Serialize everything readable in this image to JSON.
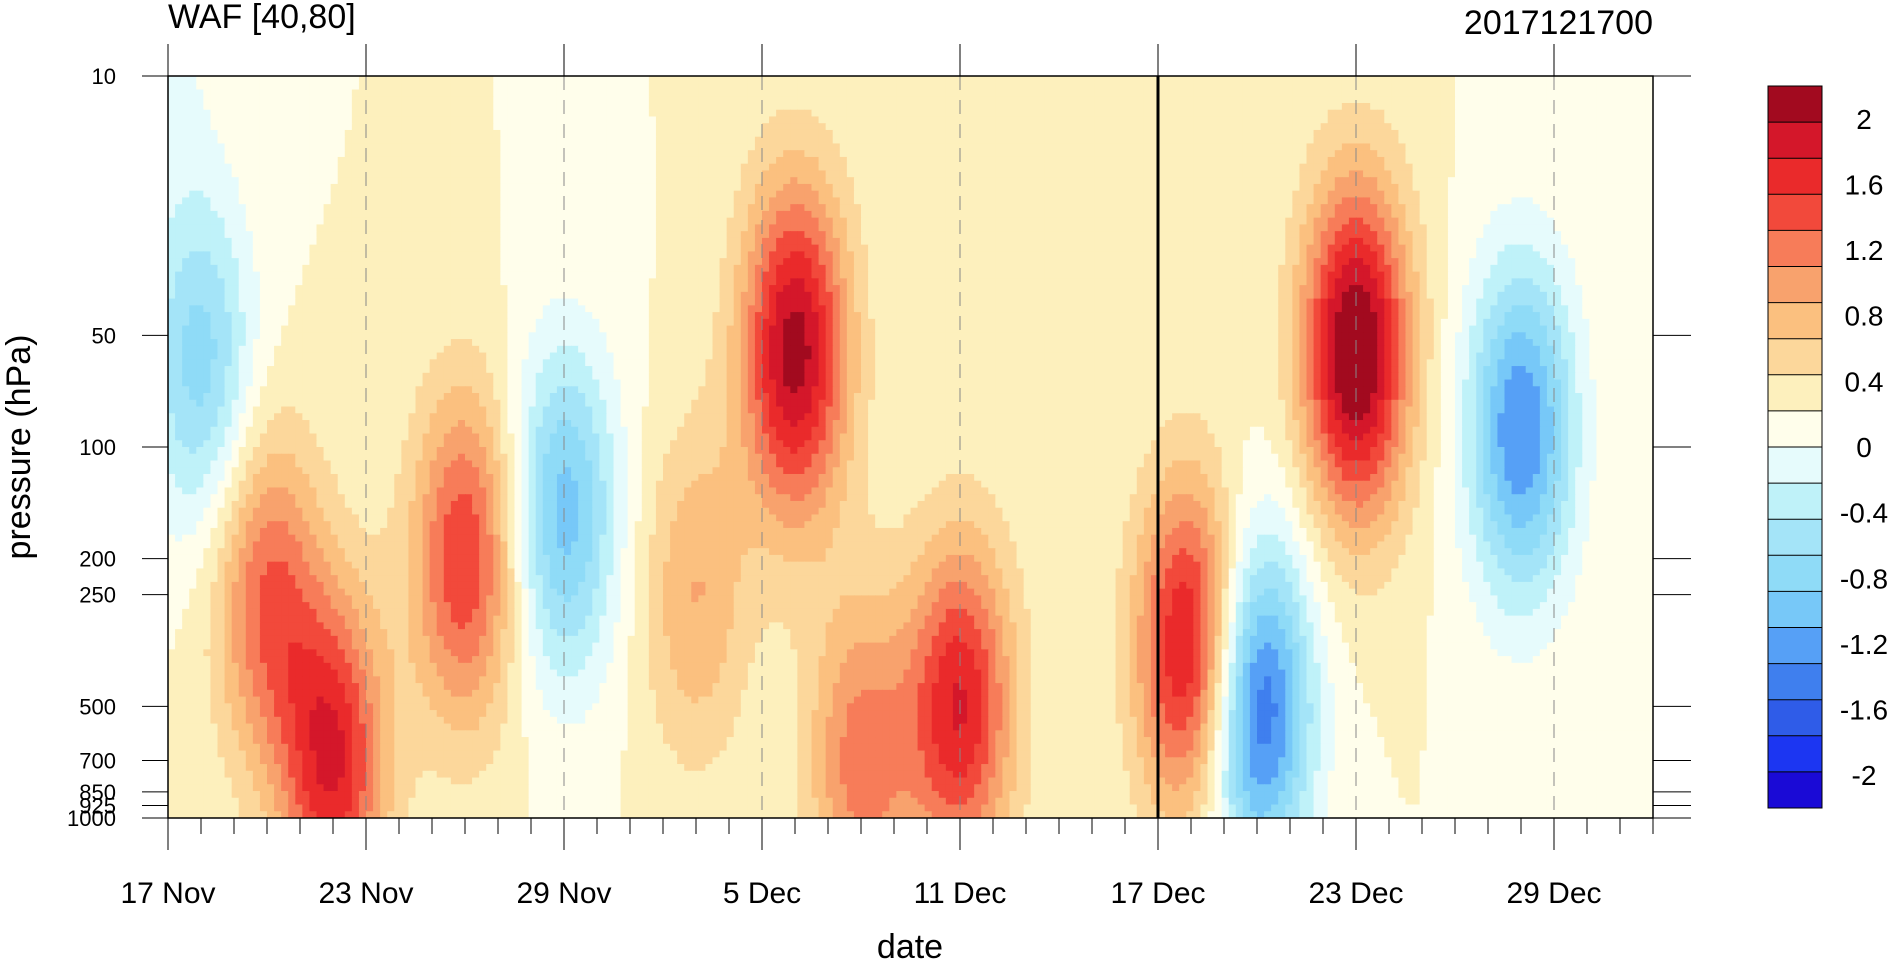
{
  "chart_data": {
    "type": "heatmap",
    "title": "WAF [40,80]",
    "subtitle": "2017121700",
    "xlabel": "date",
    "ylabel": "pressure (hPa)",
    "x_start": "2017-11-17",
    "x_end": "2018-01-01",
    "x_tick_labels": [
      "17 Nov",
      "23 Nov",
      "29 Nov",
      "5 Dec",
      "11 Dec",
      "17 Dec",
      "23 Dec",
      "29 Dec"
    ],
    "x_ticks": [
      "2017-11-17",
      "2017-11-23",
      "2017-11-29",
      "2017-12-05",
      "2017-12-11",
      "2017-12-17",
      "2017-12-23",
      "2017-12-29"
    ],
    "y_scale": "log",
    "y_ticks": [
      10,
      50,
      100,
      200,
      250,
      500,
      700,
      850,
      925,
      1000
    ],
    "y_tick_labels": [
      "10",
      "50",
      "100",
      "200",
      "250",
      "500",
      "700",
      "850",
      "925",
      "1000"
    ],
    "ylim": [
      1000,
      10
    ],
    "marker_date": "2017-12-17",
    "colorbar": {
      "levels": [
        -2.2,
        -2.0,
        -1.8,
        -1.6,
        -1.4,
        -1.2,
        -1.0,
        -0.8,
        -0.6,
        -0.4,
        -0.2,
        0.0,
        0.2,
        0.4,
        0.6,
        0.8,
        1.0,
        1.2,
        1.4,
        1.6,
        1.8,
        2.0,
        2.2
      ],
      "tick_labels": [
        "2",
        "1.6",
        "1.2",
        "0.8",
        "0.4",
        "0",
        "-0.4",
        "-0.8",
        "-1.2",
        "-1.6",
        "-2"
      ],
      "tick_values": [
        2.0,
        1.6,
        1.2,
        0.8,
        0.4,
        0.0,
        -0.4,
        -0.8,
        -1.2,
        -1.6,
        -2.0
      ],
      "colors": [
        "#1a0ad6",
        "#1c36f2",
        "#2f5ce8",
        "#3f7fee",
        "#56a0f6",
        "#77c8f8",
        "#8fdbf7",
        "#a4e4f8",
        "#bff2f9",
        "#e6fbfc",
        "#fffeeb",
        "#fdf0bd",
        "#fcd79b",
        "#fbc07f",
        "#f8a26d",
        "#f77c59",
        "#f2493b",
        "#ea2a2b",
        "#d4172a",
        "#a20a1f"
      ]
    },
    "features": [
      {
        "date": "2017-11-17",
        "p": 10,
        "v": -0.2
      },
      {
        "date": "2017-11-18",
        "p": 60,
        "v": -0.9
      },
      {
        "date": "2017-11-20",
        "p": 250,
        "v": 1.0
      },
      {
        "date": "2017-11-22",
        "p": 700,
        "v": 1.4
      },
      {
        "date": "2017-11-26",
        "p": 200,
        "v": 1.2
      },
      {
        "date": "2017-11-29",
        "p": 150,
        "v": -1.1
      },
      {
        "date": "2017-12-03",
        "p": 250,
        "v": 0.6
      },
      {
        "date": "2017-12-06",
        "p": 55,
        "v": 1.7
      },
      {
        "date": "2017-12-08",
        "p": 700,
        "v": 0.9
      },
      {
        "date": "2017-12-11",
        "p": 500,
        "v": 1.4
      },
      {
        "date": "2017-12-18",
        "p": 350,
        "v": 1.6
      },
      {
        "date": "2017-12-20",
        "p": 500,
        "v": -1.7
      },
      {
        "date": "2017-12-23",
        "p": 55,
        "v": 1.9
      },
      {
        "date": "2017-12-28",
        "p": 90,
        "v": -1.4
      }
    ]
  }
}
